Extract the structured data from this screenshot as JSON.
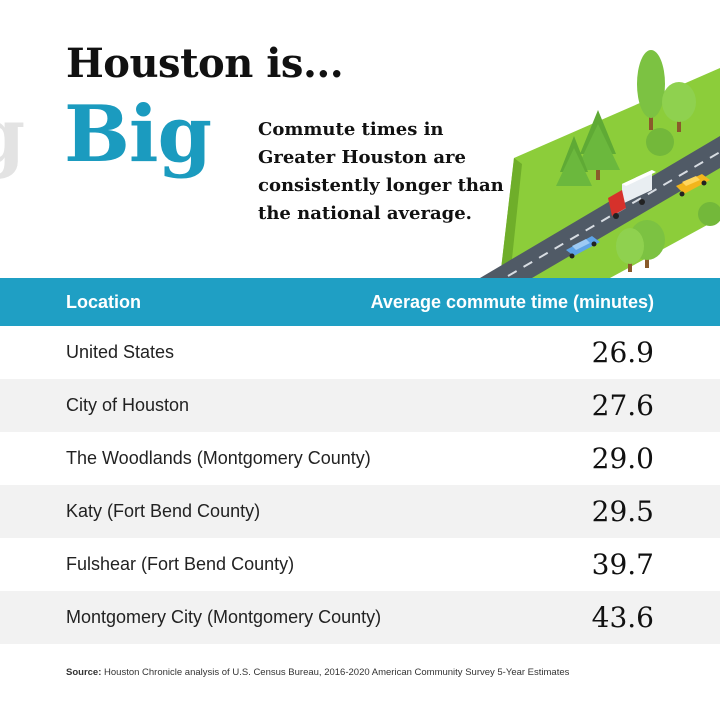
{
  "header": {
    "title_line1": "Houston is...",
    "title_line2": "Big",
    "ghost_text": "g",
    "subtitle": "Commute times in Greater Houston are consistently longer than the national average."
  },
  "table": {
    "col_location": "Location",
    "col_value": "Average commute time (minutes)",
    "rows": [
      {
        "location": "United States",
        "value": "26.9"
      },
      {
        "location": "City of Houston",
        "value": "27.6"
      },
      {
        "location": "The Woodlands (Montgomery County)",
        "value": "29.0"
      },
      {
        "location": "Katy (Fort Bend County)",
        "value": "29.5"
      },
      {
        "location": "Fulshear (Fort Bend County)",
        "value": "39.7"
      },
      {
        "location": "Montgomery City (Montgomery County)",
        "value": "43.6"
      }
    ]
  },
  "source": {
    "label": "Source:",
    "text": "Houston Chronicle analysis of U.S. Census Bureau, 2016-2020 American Community Survey 5-Year Estimates"
  },
  "colors": {
    "accent": "#1b9bbf",
    "header_bar": "#1f9fc4",
    "row_alt": "#f2f2f2",
    "grass": "#8ccd3a",
    "road": "#505a66"
  },
  "illustration": {
    "icons": [
      "tree-icon",
      "road-icon",
      "truck-icon",
      "car-icon"
    ]
  }
}
